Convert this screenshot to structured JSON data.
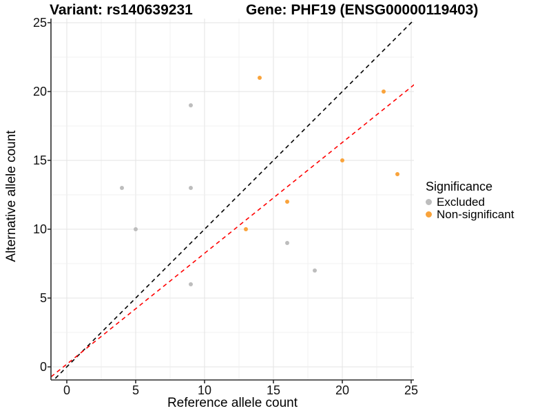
{
  "figure": {
    "title_left": "Variant: rs140639231",
    "title_right": "Gene: PHF19 (ENSG00000119403)"
  },
  "chart_data": {
    "type": "scatter",
    "title": "Variant: rs140639231 — Gene: PHF19 (ENSG00000119403)",
    "xlabel": "Reference allele count",
    "ylabel": "Alternative allele count",
    "xlim": [
      -1.15,
      25.2
    ],
    "ylim": [
      -0.95,
      25.3
    ],
    "x_ticks": [
      0,
      5,
      10,
      15,
      20,
      25
    ],
    "y_ticks": [
      0,
      5,
      10,
      15,
      20,
      25
    ],
    "grid": {
      "step": 2.5,
      "major_every": 5,
      "major_color": "#e3e3e3",
      "minor_color": "#f0f0f0"
    },
    "series": [
      {
        "name": "Excluded",
        "color": "#BDBDBD",
        "points": [
          [
            4,
            13
          ],
          [
            5,
            10
          ],
          [
            9,
            19
          ],
          [
            9,
            13
          ],
          [
            9,
            6
          ],
          [
            16,
            9
          ],
          [
            18,
            7
          ]
        ]
      },
      {
        "name": "Non-significant",
        "color": "#F9A33B",
        "points": [
          [
            13,
            10
          ],
          [
            14,
            21
          ],
          [
            16,
            12
          ],
          [
            20,
            15
          ],
          [
            23,
            20
          ],
          [
            24,
            14
          ]
        ]
      }
    ],
    "reference_lines": [
      {
        "name": "identity-line",
        "slope": 1,
        "intercept": 0,
        "color": "#000000",
        "style": "dashed"
      },
      {
        "name": "fit-line",
        "slope": 0.805,
        "intercept": 0.2,
        "color": "#FF0000",
        "style": "dashed"
      }
    ],
    "legend": {
      "title": "Significance",
      "position": "right"
    },
    "axis_color": "#2b2b2b"
  }
}
